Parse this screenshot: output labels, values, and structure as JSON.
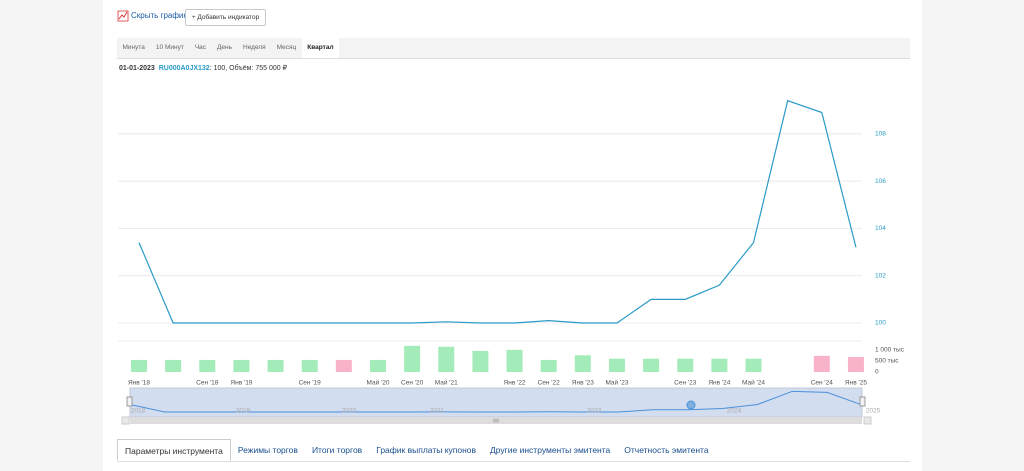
{
  "toolbar": {
    "hide_chart": "Скрыть график",
    "add_indicator": "+ Добавить индикатор"
  },
  "periods": [
    "Минута",
    "10 Минут",
    "Час",
    "День",
    "Неделя",
    "Месяц",
    "Квартал"
  ],
  "active_period": 6,
  "info": {
    "date": "01-01-2023",
    "ticker": "RU000A0JX132",
    "rest": ": 100, Объём: 755 000 ₽"
  },
  "chart_data": [
    {
      "type": "line",
      "values": [
        103.4,
        100,
        100,
        100,
        100,
        100,
        100,
        100,
        100,
        100.05,
        100,
        100,
        100.1,
        100,
        100,
        101,
        101,
        101.6,
        103.4,
        109.4,
        108.9,
        103.2
      ],
      "color": "#2a9bc6",
      "ylim": [
        100,
        110
      ],
      "yticks": [
        100,
        102,
        104,
        106,
        108
      ],
      "grid": true
    },
    {
      "type": "bar",
      "categories": [
        "Янв '18",
        null,
        "Сен '18",
        "Янв '19",
        null,
        "Сен '19",
        null,
        "Май '20",
        "Сен '20",
        "Май '21",
        null,
        "Янв '22",
        "Сен '22",
        "Янв '23",
        "Май '23",
        null,
        "Сен '23",
        "Янв '24",
        "Май '24",
        null,
        "Сен '24",
        "Янв '25"
      ],
      "values": [
        545000,
        545000,
        545000,
        545000,
        545000,
        545000,
        545000,
        545000,
        1180000,
        1140000,
        950000,
        1000000,
        545000,
        755000,
        600000,
        600000,
        600000,
        600000,
        600000,
        null,
        730000,
        680000
      ],
      "colors": [
        "#a3ecb9",
        "#a3ecb9",
        "#a3ecb9",
        "#a3ecb9",
        "#a3ecb9",
        "#a3ecb9",
        "#f9b3c9",
        "#a3ecb9",
        "#a3ecb9",
        "#a3ecb9",
        "#a3ecb9",
        "#a3ecb9",
        "#a3ecb9",
        "#a3ecb9",
        "#a3ecb9",
        "#a3ecb9",
        "#a3ecb9",
        "#a3ecb9",
        "#a3ecb9",
        "#a3ecb9",
        "#f9b3c9",
        "#f9b3c9"
      ],
      "ylim": [
        0,
        1400000
      ],
      "yticks": [
        0,
        {
          "value": 500000,
          "label": "500 тыс"
        },
        {
          "value": 1000000,
          "label": "1 000 тыс"
        }
      ],
      "grid": false
    }
  ],
  "navigator": {
    "labels": [
      "2018",
      "2019",
      "2020",
      "2021",
      "2023",
      "2024",
      "2025"
    ]
  },
  "tabs": [
    "Параметры инструмента",
    "Режимы торгов",
    "Итоги торгов",
    "График выплаты купонов",
    "Другие инструменты эмитента",
    "Отчетность эмитента"
  ],
  "active_tab": 0
}
